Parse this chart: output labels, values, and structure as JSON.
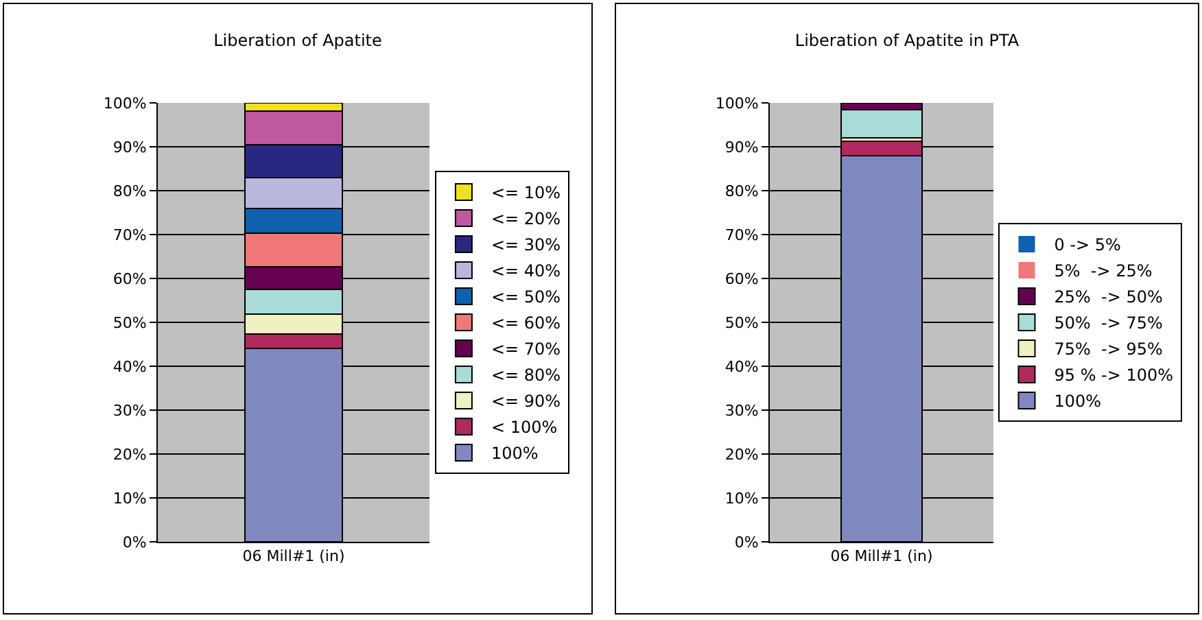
{
  "chart_data": [
    {
      "type": "bar",
      "title": "Liberation of Apatite",
      "categories": [
        "06 Mill#1 (in)"
      ],
      "stacked": true,
      "legend": "right",
      "grid": "y",
      "ylim": [
        0,
        100
      ],
      "yticks": [
        {
          "value": 0,
          "label": "0%"
        },
        {
          "value": 10,
          "label": "10%"
        },
        {
          "value": 20,
          "label": "20%"
        },
        {
          "value": 30,
          "label": "30%"
        },
        {
          "value": 40,
          "label": "40%"
        },
        {
          "value": 50,
          "label": "50%"
        },
        {
          "value": 60,
          "label": "60%"
        },
        {
          "value": 70,
          "label": "70%"
        },
        {
          "value": 80,
          "label": "80%"
        },
        {
          "value": 90,
          "label": "90%"
        },
        {
          "value": 100,
          "label": "100%"
        }
      ],
      "series": [
        {
          "name": "100%",
          "color": "#8088c0",
          "values": [
            44
          ]
        },
        {
          "name": "< 100%",
          "color": "#b02a60",
          "values": [
            3.3
          ]
        },
        {
          "name": "<= 90%",
          "color": "#f0f0c0",
          "values": [
            4.5
          ]
        },
        {
          "name": "<= 80%",
          "color": "#a8dcd8",
          "values": [
            5.7
          ]
        },
        {
          "name": "<= 70%",
          "color": "#660050",
          "values": [
            5.1
          ]
        },
        {
          "name": "<= 60%",
          "color": "#f07878",
          "values": [
            7.7
          ]
        },
        {
          "name": "<= 50%",
          "color": "#1060b0",
          "values": [
            5.6
          ]
        },
        {
          "name": "<= 40%",
          "color": "#b8b8dc",
          "values": [
            7.0
          ]
        },
        {
          "name": "<= 30%",
          "color": "#282880",
          "values": [
            7.6
          ]
        },
        {
          "name": "<= 20%",
          "color": "#c058a0",
          "values": [
            7.7
          ]
        },
        {
          "name": "<= 10%",
          "color": "#f0e020",
          "values": [
            1.8
          ]
        }
      ]
    },
    {
      "type": "bar",
      "title": "Liberation of Apatite in PTA",
      "categories": [
        "06 Mill#1 (in)"
      ],
      "stacked": true,
      "legend": "right",
      "grid": "y",
      "ylim": [
        0,
        100
      ],
      "yticks": [
        {
          "value": 0,
          "label": "0%"
        },
        {
          "value": 10,
          "label": "10%"
        },
        {
          "value": 20,
          "label": "20%"
        },
        {
          "value": 30,
          "label": "30%"
        },
        {
          "value": 40,
          "label": "40%"
        },
        {
          "value": 50,
          "label": "50%"
        },
        {
          "value": 60,
          "label": "60%"
        },
        {
          "value": 70,
          "label": "70%"
        },
        {
          "value": 80,
          "label": "80%"
        },
        {
          "value": 90,
          "label": "90%"
        },
        {
          "value": 100,
          "label": "100%"
        }
      ],
      "series": [
        {
          "name": "100%",
          "color": "#8088c0",
          "values": [
            88
          ]
        },
        {
          "name": "95 % -> 100%",
          "color": "#b02a60",
          "values": [
            3.2
          ]
        },
        {
          "name": "75%  -> 95%",
          "color": "#f0f0c0",
          "values": [
            0.8
          ]
        },
        {
          "name": "50%  -> 75%",
          "color": "#a8dcd8",
          "values": [
            6.5
          ]
        },
        {
          "name": "25%  -> 50%",
          "color": "#660050",
          "values": [
            1.5
          ]
        },
        {
          "name": "5%  -> 25%",
          "color": "#f07878",
          "values": [
            0
          ]
        },
        {
          "name": "0 -> 5%",
          "color": "#1060b0",
          "values": [
            0
          ]
        }
      ]
    }
  ]
}
